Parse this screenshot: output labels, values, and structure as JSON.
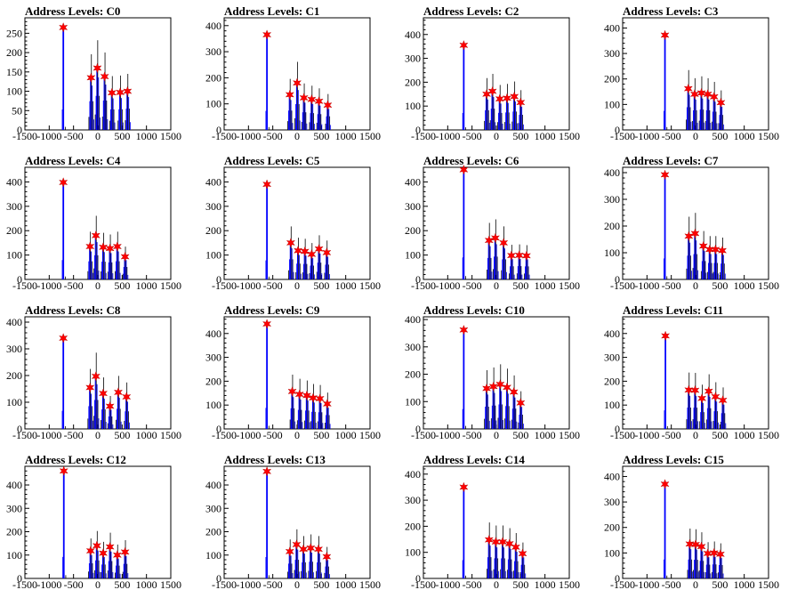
{
  "chart_data": [
    {
      "type": "bar",
      "title": "Address Levels: C0",
      "x_ticks": [
        "-1500",
        "-1000",
        "-500",
        "0",
        "500",
        "1000",
        "1500"
      ],
      "y_ticks": [
        "0",
        "50",
        "100",
        "150",
        "200",
        "250"
      ],
      "xlim": [
        -1500,
        1500
      ],
      "ylim": [
        0,
        290
      ],
      "peaks": [
        {
          "x": -710,
          "y": 265
        },
        {
          "x": -140,
          "y": 135
        },
        {
          "x": -10,
          "y": 160
        },
        {
          "x": 140,
          "y": 138
        },
        {
          "x": 290,
          "y": 96
        },
        {
          "x": 460,
          "y": 97
        },
        {
          "x": 610,
          "y": 100
        }
      ]
    },
    {
      "type": "bar",
      "title": "Address Levels: C1",
      "x_ticks": [
        "-1500",
        "-1000",
        "-500",
        "0",
        "500",
        "1000",
        "1500"
      ],
      "y_ticks": [
        "0",
        "100",
        "200",
        "300",
        "400"
      ],
      "xlim": [
        -1500,
        1500
      ],
      "ylim": [
        0,
        430
      ],
      "peaks": [
        {
          "x": -620,
          "y": 365
        },
        {
          "x": -150,
          "y": 135
        },
        {
          "x": 0,
          "y": 180
        },
        {
          "x": 140,
          "y": 123
        },
        {
          "x": 300,
          "y": 117
        },
        {
          "x": 450,
          "y": 110
        },
        {
          "x": 630,
          "y": 95
        }
      ]
    },
    {
      "type": "bar",
      "title": "Address Levels: C2",
      "x_ticks": [
        "-1500",
        "-1000",
        "-500",
        "0",
        "500",
        "1000",
        "1500"
      ],
      "y_ticks": [
        "0",
        "100",
        "200",
        "300",
        "400"
      ],
      "xlim": [
        -1500,
        1500
      ],
      "ylim": [
        0,
        470
      ],
      "peaks": [
        {
          "x": -670,
          "y": 355
        },
        {
          "x": -200,
          "y": 150
        },
        {
          "x": -80,
          "y": 162
        },
        {
          "x": 70,
          "y": 130
        },
        {
          "x": 220,
          "y": 133
        },
        {
          "x": 370,
          "y": 140
        },
        {
          "x": 500,
          "y": 115
        }
      ]
    },
    {
      "type": "bar",
      "title": "Address Levels: C3",
      "x_ticks": [
        "-1500",
        "-1000",
        "-500",
        "0",
        "500",
        "1000",
        "1500"
      ],
      "y_ticks": [
        "0",
        "100",
        "200",
        "300",
        "400"
      ],
      "xlim": [
        -1500,
        1500
      ],
      "ylim": [
        0,
        440
      ],
      "peaks": [
        {
          "x": -630,
          "y": 372
        },
        {
          "x": -150,
          "y": 162
        },
        {
          "x": -20,
          "y": 140
        },
        {
          "x": 120,
          "y": 145
        },
        {
          "x": 250,
          "y": 140
        },
        {
          "x": 380,
          "y": 130
        },
        {
          "x": 520,
          "y": 107
        }
      ]
    },
    {
      "type": "bar",
      "title": "Address Levels: C4",
      "x_ticks": [
        "-1500",
        "-1000",
        "-500",
        "0",
        "500",
        "1000",
        "1500"
      ],
      "y_ticks": [
        "0",
        "100",
        "200",
        "300",
        "400"
      ],
      "xlim": [
        -1500,
        1500
      ],
      "ylim": [
        0,
        460
      ],
      "peaks": [
        {
          "x": -710,
          "y": 398
        },
        {
          "x": -160,
          "y": 135
        },
        {
          "x": -40,
          "y": 180
        },
        {
          "x": 110,
          "y": 132
        },
        {
          "x": 250,
          "y": 127
        },
        {
          "x": 400,
          "y": 135
        },
        {
          "x": 560,
          "y": 93
        }
      ]
    },
    {
      "type": "bar",
      "title": "Address Levels: C5",
      "x_ticks": [
        "-1500",
        "-1000",
        "-500",
        "0",
        "500",
        "1000",
        "1500"
      ],
      "y_ticks": [
        "0",
        "100",
        "200",
        "300",
        "400"
      ],
      "xlim": [
        -1500,
        1500
      ],
      "ylim": [
        0,
        460
      ],
      "peaks": [
        {
          "x": -620,
          "y": 390
        },
        {
          "x": -130,
          "y": 150
        },
        {
          "x": 20,
          "y": 118
        },
        {
          "x": 160,
          "y": 115
        },
        {
          "x": 300,
          "y": 103
        },
        {
          "x": 450,
          "y": 125
        },
        {
          "x": 610,
          "y": 110
        }
      ]
    },
    {
      "type": "bar",
      "title": "Address Levels: C6",
      "x_ticks": [
        "-1500",
        "-1000",
        "-500",
        "0",
        "500",
        "1000",
        "1500"
      ],
      "y_ticks": [
        "0",
        "100",
        "200",
        "300",
        "400"
      ],
      "xlim": [
        -1500,
        1500
      ],
      "ylim": [
        0,
        460
      ],
      "peaks": [
        {
          "x": -670,
          "y": 450
        },
        {
          "x": -150,
          "y": 160
        },
        {
          "x": -20,
          "y": 170
        },
        {
          "x": 150,
          "y": 150
        },
        {
          "x": 310,
          "y": 98
        },
        {
          "x": 470,
          "y": 99
        },
        {
          "x": 620,
          "y": 97
        }
      ]
    },
    {
      "type": "bar",
      "title": "Address Levels: C7",
      "x_ticks": [
        "-1500",
        "-1000",
        "-500",
        "0",
        "500",
        "1000",
        "1500"
      ],
      "y_ticks": [
        "0",
        "100",
        "200",
        "300",
        "400"
      ],
      "xlim": [
        -1500,
        1500
      ],
      "ylim": [
        0,
        420
      ],
      "peaks": [
        {
          "x": -630,
          "y": 392
        },
        {
          "x": -140,
          "y": 162
        },
        {
          "x": -10,
          "y": 172
        },
        {
          "x": 160,
          "y": 125
        },
        {
          "x": 290,
          "y": 112
        },
        {
          "x": 410,
          "y": 112
        },
        {
          "x": 550,
          "y": 108
        }
      ]
    },
    {
      "type": "bar",
      "title": "Address Levels: C8",
      "x_ticks": [
        "-1500",
        "-1000",
        "-500",
        "0",
        "500",
        "1000",
        "1500"
      ],
      "y_ticks": [
        "0",
        "100",
        "200",
        "300",
        "400"
      ],
      "xlim": [
        -1500,
        1500
      ],
      "ylim": [
        0,
        420
      ],
      "peaks": [
        {
          "x": -710,
          "y": 340
        },
        {
          "x": -160,
          "y": 155
        },
        {
          "x": -40,
          "y": 197
        },
        {
          "x": 110,
          "y": 133
        },
        {
          "x": 250,
          "y": 85
        },
        {
          "x": 420,
          "y": 137
        },
        {
          "x": 590,
          "y": 120
        }
      ]
    },
    {
      "type": "bar",
      "title": "Address Levels: C9",
      "x_ticks": [
        "-1500",
        "-1000",
        "-500",
        "0",
        "500",
        "1000",
        "1500"
      ],
      "y_ticks": [
        "0",
        "100",
        "200",
        "300",
        "400"
      ],
      "xlim": [
        -1500,
        1500
      ],
      "ylim": [
        0,
        470
      ],
      "peaks": [
        {
          "x": -620,
          "y": 440
        },
        {
          "x": -100,
          "y": 157
        },
        {
          "x": 50,
          "y": 145
        },
        {
          "x": 200,
          "y": 140
        },
        {
          "x": 330,
          "y": 130
        },
        {
          "x": 470,
          "y": 127
        },
        {
          "x": 620,
          "y": 105
        }
      ]
    },
    {
      "type": "bar",
      "title": "Address Levels: C10",
      "x_ticks": [
        "-1500",
        "-1000",
        "-500",
        "0",
        "500",
        "1000",
        "1500"
      ],
      "y_ticks": [
        "0",
        "100",
        "200",
        "300",
        "400"
      ],
      "xlim": [
        -1500,
        1500
      ],
      "ylim": [
        0,
        410
      ],
      "peaks": [
        {
          "x": -670,
          "y": 362
        },
        {
          "x": -200,
          "y": 148
        },
        {
          "x": -60,
          "y": 155
        },
        {
          "x": 80,
          "y": 163
        },
        {
          "x": 220,
          "y": 152
        },
        {
          "x": 360,
          "y": 135
        },
        {
          "x": 500,
          "y": 95
        }
      ]
    },
    {
      "type": "bar",
      "title": "Address Levels: C11",
      "x_ticks": [
        "-1500",
        "-1000",
        "-500",
        "0",
        "500",
        "1000",
        "1500"
      ],
      "y_ticks": [
        "0",
        "100",
        "200",
        "300",
        "400"
      ],
      "xlim": [
        -1500,
        1500
      ],
      "ylim": [
        0,
        470
      ],
      "peaks": [
        {
          "x": -620,
          "y": 390
        },
        {
          "x": -140,
          "y": 163
        },
        {
          "x": -10,
          "y": 162
        },
        {
          "x": 130,
          "y": 128
        },
        {
          "x": 270,
          "y": 158
        },
        {
          "x": 410,
          "y": 135
        },
        {
          "x": 560,
          "y": 120
        }
      ]
    },
    {
      "type": "bar",
      "title": "Address Levels: C12",
      "x_ticks": [
        "-1500",
        "-1000",
        "-500",
        "0",
        "500",
        "1000",
        "1500"
      ],
      "y_ticks": [
        "0",
        "100",
        "200",
        "300",
        "400"
      ],
      "xlim": [
        -1500,
        1500
      ],
      "ylim": [
        0,
        480
      ],
      "peaks": [
        {
          "x": -700,
          "y": 460
        },
        {
          "x": -150,
          "y": 118
        },
        {
          "x": -20,
          "y": 140
        },
        {
          "x": 110,
          "y": 108
        },
        {
          "x": 250,
          "y": 135
        },
        {
          "x": 400,
          "y": 100
        },
        {
          "x": 560,
          "y": 113
        }
      ]
    },
    {
      "type": "bar",
      "title": "Address Levels: C13",
      "x_ticks": [
        "-1500",
        "-1000",
        "-500",
        "0",
        "500",
        "1000",
        "1500"
      ],
      "y_ticks": [
        "0",
        "100",
        "200",
        "300",
        "400"
      ],
      "xlim": [
        -1500,
        1500
      ],
      "ylim": [
        0,
        480
      ],
      "peaks": [
        {
          "x": -620,
          "y": 458
        },
        {
          "x": -150,
          "y": 115
        },
        {
          "x": -10,
          "y": 145
        },
        {
          "x": 130,
          "y": 125
        },
        {
          "x": 280,
          "y": 130
        },
        {
          "x": 440,
          "y": 125
        },
        {
          "x": 610,
          "y": 93
        }
      ]
    },
    {
      "type": "bar",
      "title": "Address Levels: C14",
      "x_ticks": [
        "-1500",
        "-1000",
        "-500",
        "0",
        "500",
        "1000",
        "1500"
      ],
      "y_ticks": [
        "0",
        "100",
        "200",
        "300",
        "400"
      ],
      "xlim": [
        -1500,
        1500
      ],
      "ylim": [
        0,
        430
      ],
      "peaks": [
        {
          "x": -670,
          "y": 350
        },
        {
          "x": -150,
          "y": 148
        },
        {
          "x": -10,
          "y": 140
        },
        {
          "x": 130,
          "y": 140
        },
        {
          "x": 270,
          "y": 133
        },
        {
          "x": 400,
          "y": 120
        },
        {
          "x": 540,
          "y": 95
        }
      ]
    },
    {
      "type": "bar",
      "title": "Address Levels: C15",
      "x_ticks": [
        "-1500",
        "-1000",
        "-500",
        "0",
        "500",
        "1000",
        "1500"
      ],
      "y_ticks": [
        "0",
        "100",
        "200",
        "300",
        "400"
      ],
      "xlim": [
        -1500,
        1500
      ],
      "ylim": [
        0,
        440
      ],
      "peaks": [
        {
          "x": -630,
          "y": 370
        },
        {
          "x": -120,
          "y": 135
        },
        {
          "x": 0,
          "y": 133
        },
        {
          "x": 120,
          "y": 125
        },
        {
          "x": 250,
          "y": 98
        },
        {
          "x": 380,
          "y": 100
        },
        {
          "x": 510,
          "y": 95
        }
      ]
    }
  ],
  "colors": {
    "histogram": "#0000ff",
    "secondary": "#000000",
    "marker": "#ff0000"
  }
}
